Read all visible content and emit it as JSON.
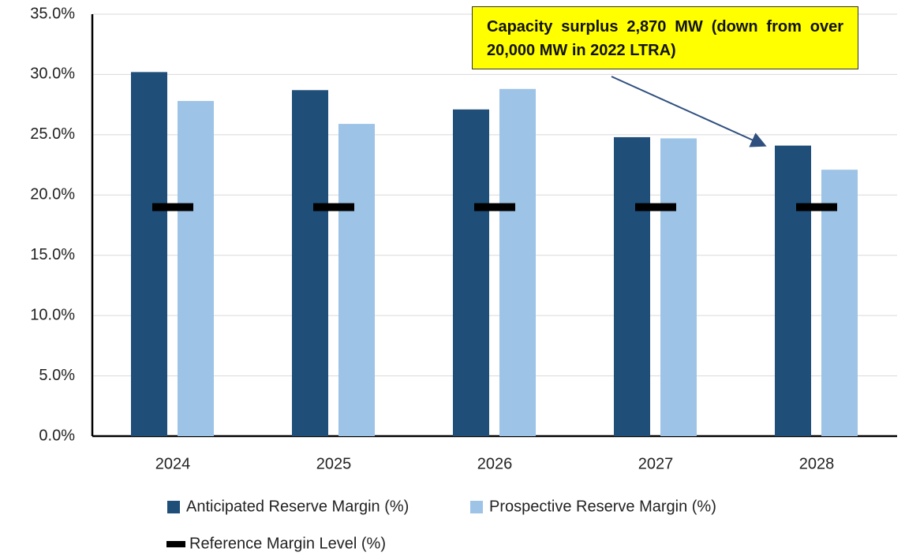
{
  "chart_data": {
    "type": "bar",
    "categories": [
      "2024",
      "2025",
      "2026",
      "2027",
      "2028"
    ],
    "series": [
      {
        "name": "Anticipated Reserve Margin (%)",
        "color": "#1f4e79",
        "mark": "bar",
        "values": [
          30.2,
          28.7,
          27.1,
          24.8,
          24.1
        ]
      },
      {
        "name": "Prospective Reserve Margin (%)",
        "color": "#9dc3e6",
        "mark": "bar",
        "values": [
          27.8,
          25.9,
          28.8,
          24.7,
          22.1
        ]
      },
      {
        "name": "Reference Margin Level (%)",
        "color": "#000000",
        "mark": "dash",
        "values": [
          19.0,
          19.0,
          19.0,
          19.0,
          19.0
        ]
      }
    ],
    "ylim": [
      0,
      35
    ],
    "yticks": [
      {
        "value": 0,
        "label": "0.0%"
      },
      {
        "value": 5,
        "label": "5.0%"
      },
      {
        "value": 10,
        "label": "10.0%"
      },
      {
        "value": 15,
        "label": "15.0%"
      },
      {
        "value": 20,
        "label": "20.0%"
      },
      {
        "value": 25,
        "label": "25.0%"
      },
      {
        "value": 30,
        "label": "30.0%"
      },
      {
        "value": 35,
        "label": "35.0%"
      }
    ],
    "grid": true,
    "annotation": "Capacity surplus 2,870 MW (down from over 20,000 MW in 2022 LTRA)"
  }
}
